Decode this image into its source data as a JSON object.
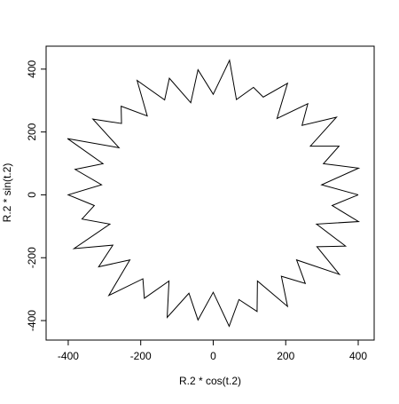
{
  "chart_data": {
    "type": "line",
    "x_label": "R.2 * cos(t.2)",
    "y_label": "R.2 * sin(t.2)",
    "series": [
      {
        "color": "#000000",
        "x": [
          400,
          299,
          401,
          304,
          347,
          268,
          340,
          245,
          261,
          176,
          205,
          138,
          111,
          64,
          45,
          0,
          -42,
          -62,
          -121,
          -134,
          -210,
          -182,
          -254,
          -253,
          -332,
          -260,
          -402,
          -304,
          -381,
          -308,
          -400,
          -328,
          -362,
          -285,
          -384,
          -277,
          -316,
          -230,
          -288,
          -194,
          -190,
          -122,
          -127,
          -67,
          -42,
          0,
          44,
          71,
          121,
          122,
          205,
          188,
          254,
          230,
          348,
          286,
          365,
          285,
          401,
          328,
          400
        ],
        "values": [
          0,
          32,
          85,
          99,
          155,
          155,
          247,
          221,
          290,
          243,
          355,
          311,
          342,
          303,
          428,
          320,
          398,
          293,
          371,
          302,
          364,
          251,
          282,
          227,
          241,
          150,
          179,
          99,
          81,
          32,
          0,
          -34,
          -77,
          -93,
          -171,
          -160,
          -229,
          -207,
          -320,
          -267,
          -329,
          -274,
          -390,
          -313,
          -398,
          -310,
          -418,
          -333,
          -371,
          -274,
          -355,
          -259,
          -282,
          -207,
          -253,
          -165,
          -163,
          -93,
          -85,
          -34,
          0
        ]
      }
    ],
    "xlim": [
      -461,
      444
    ],
    "ylim": [
      -462,
      473
    ],
    "xticks": [
      -400,
      -200,
      0,
      200,
      400
    ],
    "yticks": [
      -400,
      -200,
      0,
      200,
      400
    ]
  }
}
